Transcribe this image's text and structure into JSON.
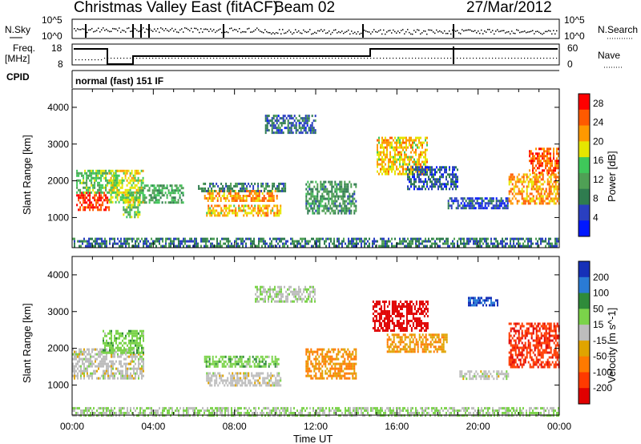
{
  "header": {
    "title": "Christmas Valley East (fitACF)",
    "beam": "Beam 02",
    "date": "27/Mar/2012"
  },
  "summary": {
    "nsky_label": "N.Sky",
    "nsky_ticks": [
      "10^5",
      "10^0"
    ],
    "nsearch_label": "N.Search",
    "nsearch_ticks": [
      "10^5",
      "10^0"
    ],
    "freq_label": "Freq.",
    "freq_unit": "[MHz]",
    "freq_ticks": [
      "18",
      "8"
    ],
    "nave_label": "Nave",
    "nave_ticks": [
      "60",
      "0"
    ],
    "cpid_label": "CPID",
    "cpid_value": "normal (fast) 151 IF"
  },
  "colors": {
    "power_scale": [
      "#0018ff",
      "#2a3fc0",
      "#2f7c4f",
      "#4fa055",
      "#3fc85a",
      "#e6e600",
      "#ff9900",
      "#ff5a00",
      "#ff0000"
    ],
    "velocity_scale": [
      "#1630b8",
      "#2a7bd5",
      "#2f8b3a",
      "#7bd34a",
      "#bdbdbd",
      "#e0a400",
      "#ff7a00",
      "#ff3a00",
      "#e00000"
    ]
  },
  "chart_data": [
    {
      "type": "heatmap",
      "title": "Power",
      "xlabel": "Time UT",
      "ylabel": "Slant Range [km]",
      "x_ticks": [
        "00:00",
        "04:00",
        "08:00",
        "12:00",
        "16:00",
        "20:00",
        "00:00"
      ],
      "x_range_hours": [
        0,
        24
      ],
      "y_ticks": [
        1000,
        2000,
        3000,
        4000
      ],
      "ylim": [
        180,
        4500
      ],
      "colorbar_label": "Power [dB]",
      "colorbar_ticks": [
        4,
        8,
        12,
        16,
        20,
        24,
        28
      ],
      "colorbar_range": [
        0,
        30
      ],
      "patches": [
        {
          "t": [
            0.2,
            1.8
          ],
          "r": [
            1200,
            1700
          ],
          "v": 27
        },
        {
          "t": [
            0.2,
            2.2
          ],
          "r": [
            1700,
            2300
          ],
          "v": 14
        },
        {
          "t": [
            1.8,
            3.5
          ],
          "r": [
            1400,
            2300
          ],
          "v": 18
        },
        {
          "t": [
            2.5,
            3.3
          ],
          "r": [
            1000,
            1700
          ],
          "v": 15
        },
        {
          "t": [
            3.3,
            5.5
          ],
          "r": [
            1400,
            1900
          ],
          "v": 12
        },
        {
          "t": [
            6.5,
            10.2
          ],
          "r": [
            1450,
            1750
          ],
          "v": 22
        },
        {
          "t": [
            6.6,
            10.3
          ],
          "r": [
            1050,
            1350
          ],
          "v": 20
        },
        {
          "t": [
            6.2,
            10.5
          ],
          "r": [
            1750,
            1950
          ],
          "v": 8
        },
        {
          "t": [
            9.5,
            12.0
          ],
          "r": [
            3300,
            3800
          ],
          "v": 7
        },
        {
          "t": [
            11.5,
            14.0
          ],
          "r": [
            1100,
            2000
          ],
          "v": 10
        },
        {
          "t": [
            15.0,
            17.5
          ],
          "r": [
            2200,
            3200
          ],
          "v": 20
        },
        {
          "t": [
            16.5,
            19.0
          ],
          "r": [
            1800,
            2400
          ],
          "v": 6
        },
        {
          "t": [
            18.5,
            21.5
          ],
          "r": [
            1250,
            1550
          ],
          "v": 5
        },
        {
          "t": [
            21.5,
            24.0
          ],
          "r": [
            1400,
            2200
          ],
          "v": 22
        },
        {
          "t": [
            22.5,
            24.0
          ],
          "r": [
            2200,
            2900
          ],
          "v": 25
        },
        {
          "t": [
            0.0,
            24.0
          ],
          "r": [
            200,
            450
          ],
          "v": 8
        }
      ]
    },
    {
      "type": "heatmap",
      "title": "Velocity",
      "xlabel": "Time UT",
      "ylabel": "Slant Range [km]",
      "x_ticks": [
        "00:00",
        "04:00",
        "08:00",
        "12:00",
        "16:00",
        "20:00",
        "00:00"
      ],
      "x_range_hours": [
        0,
        24
      ],
      "y_ticks": [
        1000,
        2000,
        3000,
        4000
      ],
      "ylim": [
        180,
        4500
      ],
      "colorbar_label": "Velocity [m s^-1]",
      "colorbar_ticks": [
        200,
        100,
        50,
        15,
        -15,
        -50,
        -100,
        -200
      ],
      "colorbar_range": [
        -250,
        250
      ],
      "patches": [
        {
          "t": [
            0.0,
            3.5
          ],
          "r": [
            1200,
            2000
          ],
          "v": 0
        },
        {
          "t": [
            1.5,
            3.5
          ],
          "r": [
            1900,
            2500
          ],
          "v": 60
        },
        {
          "t": [
            6.5,
            10.2
          ],
          "r": [
            1500,
            1800
          ],
          "v": 60
        },
        {
          "t": [
            6.6,
            10.3
          ],
          "r": [
            1000,
            1350
          ],
          "v": -5
        },
        {
          "t": [
            9.0,
            12.0
          ],
          "r": [
            3300,
            3700
          ],
          "v": 20
        },
        {
          "t": [
            11.5,
            14.0
          ],
          "r": [
            1200,
            2000
          ],
          "v": -90
        },
        {
          "t": [
            14.8,
            17.5
          ],
          "r": [
            2500,
            3300
          ],
          "v": -230
        },
        {
          "t": [
            15.5,
            18.5
          ],
          "r": [
            1900,
            2400
          ],
          "v": -80
        },
        {
          "t": [
            19.5,
            21.0
          ],
          "r": [
            3200,
            3400
          ],
          "v": 200
        },
        {
          "t": [
            19.0,
            21.5
          ],
          "r": [
            1200,
            1400
          ],
          "v": 0
        },
        {
          "t": [
            21.5,
            24.0
          ],
          "r": [
            1500,
            2700
          ],
          "v": -180
        },
        {
          "t": [
            0.0,
            24.0
          ],
          "r": [
            200,
            400
          ],
          "v": 30
        }
      ]
    }
  ]
}
